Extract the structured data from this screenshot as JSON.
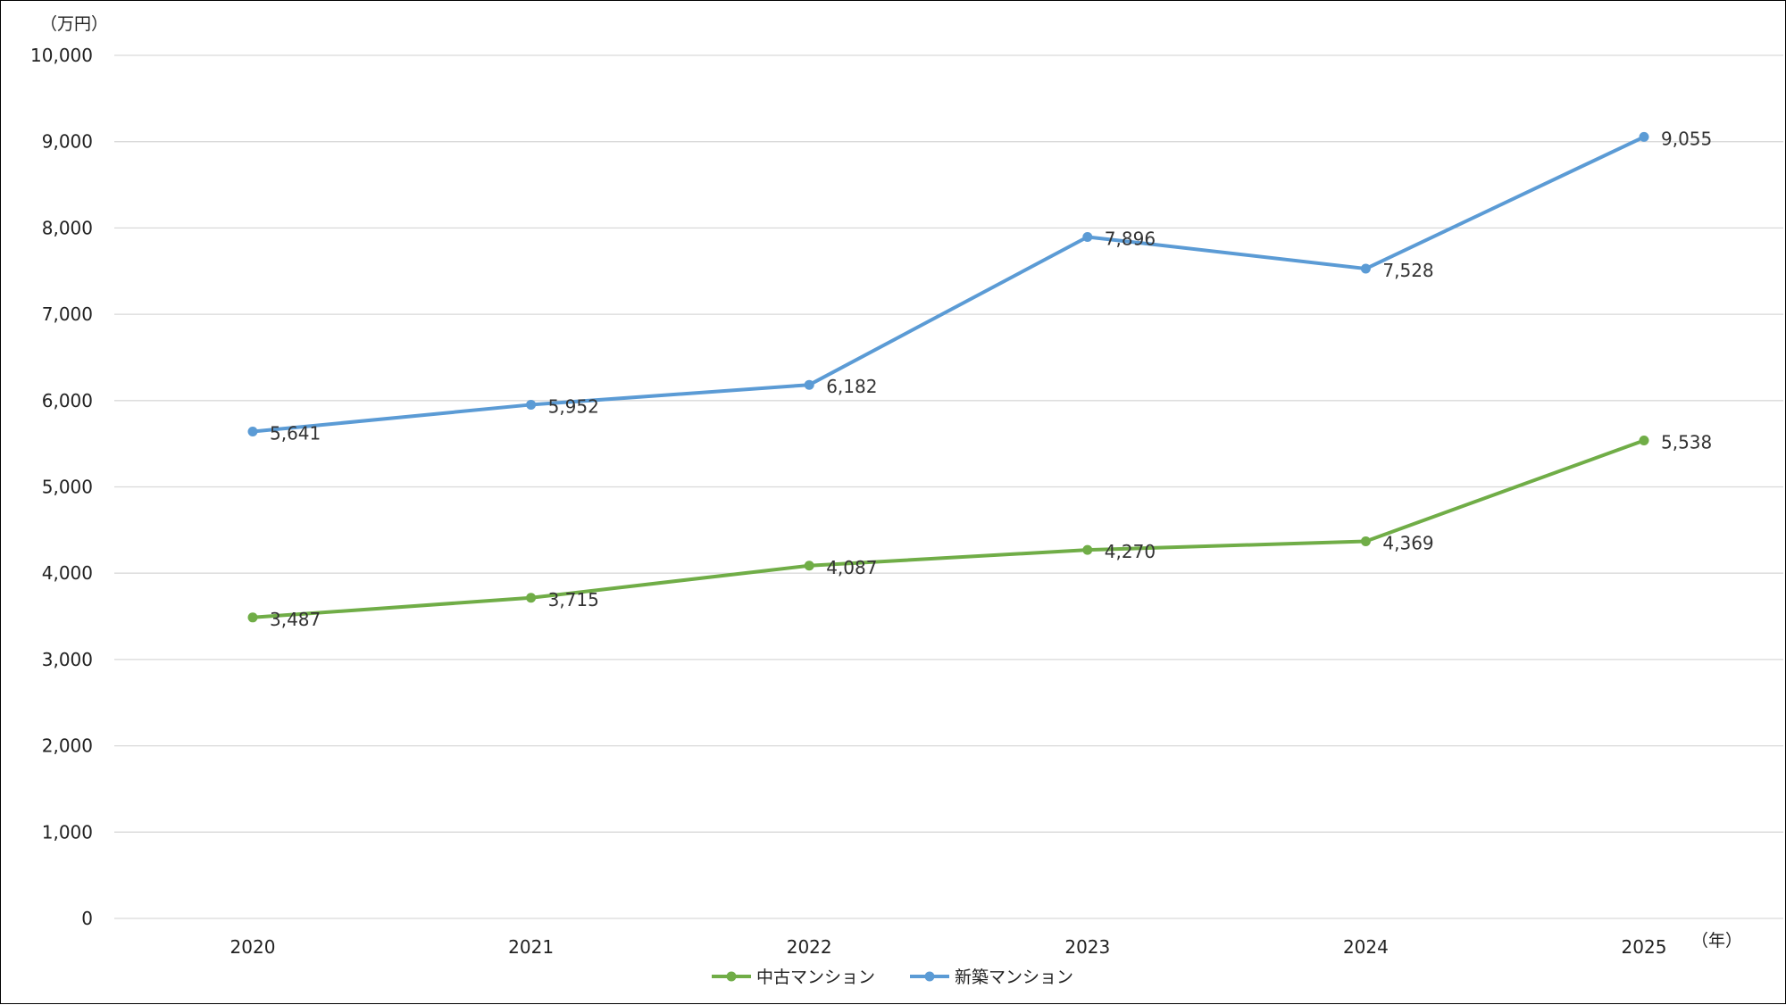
{
  "chart_data": {
    "type": "line",
    "categories": [
      "2020",
      "2021",
      "2022",
      "2023",
      "2024",
      "2025"
    ],
    "series": [
      {
        "name": "中古マンション",
        "color": "#70ad47",
        "values": [
          3487,
          3715,
          4087,
          4270,
          4369,
          5538
        ],
        "labels": [
          "3,487",
          "3,715",
          "4,087",
          "4,270",
          "4,369",
          "5,538"
        ]
      },
      {
        "name": "新築マンション",
        "color": "#5b9bd5",
        "values": [
          5641,
          5952,
          6182,
          7896,
          7528,
          9055
        ],
        "labels": [
          "5,641",
          "5,952",
          "6,182",
          "7,896",
          "7,528",
          "9,055"
        ]
      }
    ],
    "ylim": [
      0,
      10000
    ],
    "yticks": [
      0,
      1000,
      2000,
      3000,
      4000,
      5000,
      6000,
      7000,
      8000,
      9000,
      10000
    ],
    "ytick_labels": [
      "0",
      "1,000",
      "2,000",
      "3,000",
      "4,000",
      "5,000",
      "6,000",
      "7,000",
      "8,000",
      "9,000",
      "10,000"
    ],
    "y_unit": "（万円）",
    "x_unit": "（年）",
    "grid": true,
    "legend_position": "bottom"
  }
}
